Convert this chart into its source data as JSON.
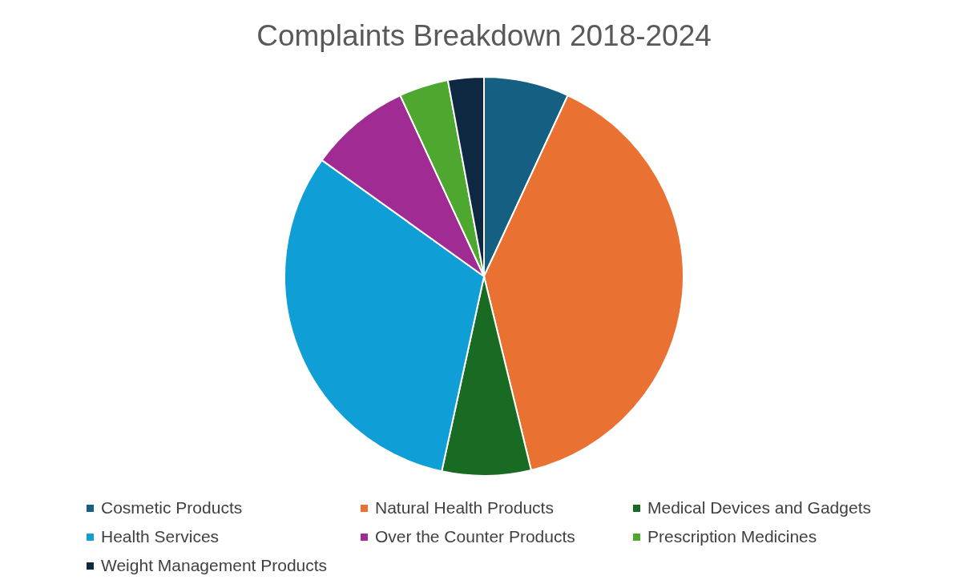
{
  "chart_data": {
    "type": "pie",
    "title": "Complaints Breakdown 2018-2024",
    "categories": [
      "Cosmetic Products",
      "Natural Health Products",
      "Medical Devices and Gadgets",
      "Health Services",
      "Over the Counter Products",
      "Prescription Medicines",
      "Weight Management Products"
    ],
    "values": [
      6.9,
      39.3,
      7.2,
      31.5,
      8.2,
      4.0,
      2.9
    ],
    "colors": [
      "#156082",
      "#e97132",
      "#196b24",
      "#0f9ed5",
      "#a02b93",
      "#4ea72e",
      "#0e2841"
    ],
    "legend": "bottom"
  }
}
